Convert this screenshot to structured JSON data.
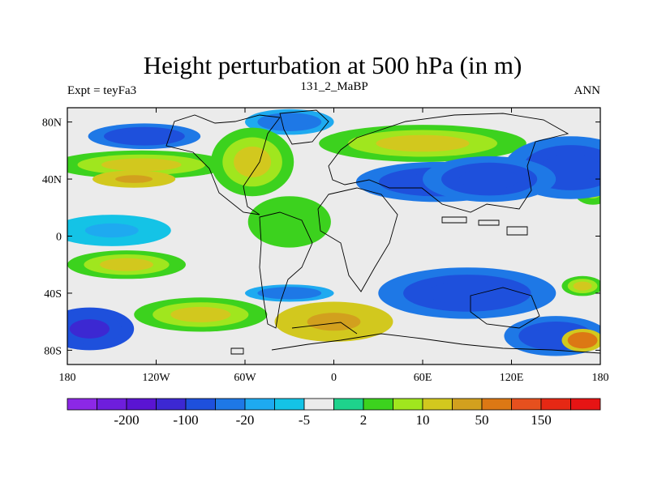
{
  "chart_data": {
    "type": "heatmap",
    "title": "Height perturbation at 500 hPa (in m)",
    "left_label": "Expt = teyFa3",
    "center_label": "131_2_MaBP",
    "right_label": "ANN",
    "x_ticks": [
      {
        "value": -180,
        "label": "180"
      },
      {
        "value": -120,
        "label": "120W"
      },
      {
        "value": -60,
        "label": "60W"
      },
      {
        "value": 0,
        "label": "0"
      },
      {
        "value": 60,
        "label": "60E"
      },
      {
        "value": 120,
        "label": "120E"
      },
      {
        "value": 180,
        "label": "180"
      }
    ],
    "y_ticks": [
      {
        "value": 80,
        "label": "80N"
      },
      {
        "value": 40,
        "label": "40N"
      },
      {
        "value": 0,
        "label": "0"
      },
      {
        "value": -40,
        "label": "40S"
      },
      {
        "value": -80,
        "label": "80S"
      }
    ],
    "xlim": [
      -180,
      180
    ],
    "ylim": [
      -90,
      90
    ],
    "colorbar": {
      "colors": [
        "#8c28e6",
        "#6e1edc",
        "#5a14d2",
        "#3c28d2",
        "#1e50dc",
        "#1e78e6",
        "#1eaaf0",
        "#14c3e6",
        "#ebebeb",
        "#1ed28c",
        "#3cd21e",
        "#a0e61e",
        "#d2c81e",
        "#d2a01e",
        "#dc7814",
        "#e6501e",
        "#e62814",
        "#e61414"
      ],
      "labels": [
        {
          "after_index": 1,
          "label": "-200"
        },
        {
          "after_index": 3,
          "label": "-100"
        },
        {
          "after_index": 5,
          "label": "-20"
        },
        {
          "after_index": 7,
          "label": "-5"
        },
        {
          "after_index": 9,
          "label": "2"
        },
        {
          "after_index": 11,
          "label": "10"
        },
        {
          "after_index": 13,
          "label": "50"
        },
        {
          "after_index": 15,
          "label": "150"
        }
      ]
    },
    "field_blobs": [
      {
        "lon": 70,
        "lat": 38,
        "rx": 55,
        "ry": 14,
        "v": -60
      },
      {
        "lon": 105,
        "lat": 40,
        "rx": 45,
        "ry": 16,
        "v": -60
      },
      {
        "lon": 160,
        "lat": 48,
        "rx": 45,
        "ry": 22,
        "v": -55
      },
      {
        "lon": -128,
        "lat": 70,
        "rx": 38,
        "ry": 9,
        "v": -35
      },
      {
        "lon": -30,
        "lat": 80,
        "rx": 30,
        "ry": 9,
        "v": -18
      },
      {
        "lon": -130,
        "lat": 50,
        "rx": 60,
        "ry": 10,
        "v": 30
      },
      {
        "lon": -135,
        "lat": 40,
        "rx": 28,
        "ry": 6,
        "v": 75
      },
      {
        "lon": -55,
        "lat": 52,
        "rx": 28,
        "ry": 24,
        "v": 30
      },
      {
        "lon": 60,
        "lat": 65,
        "rx": 70,
        "ry": 13,
        "v": 30
      },
      {
        "lon": -30,
        "lat": 10,
        "rx": 28,
        "ry": 18,
        "v": 8
      },
      {
        "lon": -150,
        "lat": 4,
        "rx": 40,
        "ry": 11,
        "v": -6
      },
      {
        "lon": -140,
        "lat": -20,
        "rx": 40,
        "ry": 10,
        "v": 30
      },
      {
        "lon": -90,
        "lat": -55,
        "rx": 45,
        "ry": 12,
        "v": 20
      },
      {
        "lon": 0,
        "lat": -60,
        "rx": 40,
        "ry": 14,
        "v": 70
      },
      {
        "lon": -165,
        "lat": -65,
        "rx": 30,
        "ry": 15,
        "v": -70
      },
      {
        "lon": -30,
        "lat": -40,
        "rx": 30,
        "ry": 6,
        "v": -20
      },
      {
        "lon": 90,
        "lat": -40,
        "rx": 60,
        "ry": 18,
        "v": -45
      },
      {
        "lon": 150,
        "lat": -70,
        "rx": 35,
        "ry": 14,
        "v": -45
      },
      {
        "lon": 168,
        "lat": -73,
        "rx": 14,
        "ry": 8,
        "v": 140
      },
      {
        "lon": 168,
        "lat": -35,
        "rx": 14,
        "ry": 7,
        "v": 25
      },
      {
        "lon": 175,
        "lat": 30,
        "rx": 12,
        "ry": 8,
        "v": 15
      }
    ]
  }
}
